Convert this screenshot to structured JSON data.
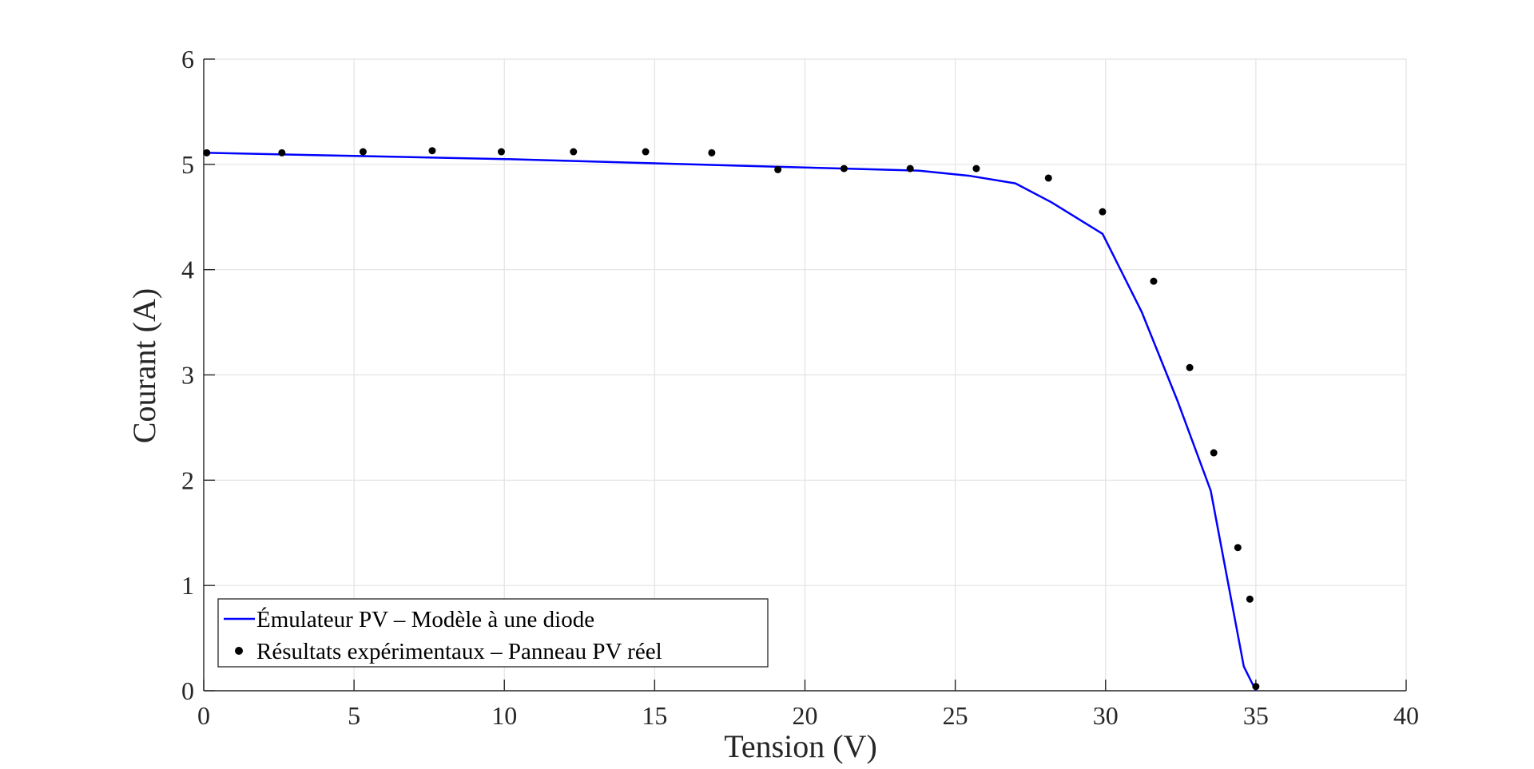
{
  "chart_data": {
    "type": "line",
    "xlabel": "Tension (V)",
    "ylabel": "Courant (A)",
    "xlim": [
      0,
      40
    ],
    "ylim": [
      0,
      6
    ],
    "xticks": [
      0,
      5,
      10,
      15,
      20,
      25,
      30,
      35,
      40
    ],
    "yticks": [
      0,
      1,
      2,
      3,
      4,
      5,
      6
    ],
    "grid": true,
    "legend_position": "bottom-left",
    "series": [
      {
        "name": "Émulateur PV – Modèle à une diode",
        "kind": "line",
        "color": "#0000ff",
        "x": [
          0,
          5,
          10,
          15,
          20,
          23.8,
          25.5,
          27.0,
          28.2,
          29.9,
          31.2,
          32.4,
          33.5,
          34.6,
          35.0
        ],
        "y": [
          5.11,
          5.08,
          5.05,
          5.01,
          4.97,
          4.94,
          4.89,
          4.82,
          4.64,
          4.34,
          3.6,
          2.75,
          1.9,
          0.23,
          0.0
        ]
      },
      {
        "name": "Résultats expérimentaux – Panneau PV réel",
        "kind": "scatter",
        "color": "#000000",
        "x": [
          0.1,
          2.6,
          5.3,
          7.6,
          9.9,
          12.3,
          14.7,
          16.9,
          19.1,
          21.3,
          23.5,
          25.7,
          28.1,
          29.9,
          31.6,
          32.8,
          33.6,
          34.4,
          34.8,
          35.0
        ],
        "y": [
          5.11,
          5.11,
          5.12,
          5.13,
          5.12,
          5.12,
          5.12,
          5.11,
          4.95,
          4.96,
          4.96,
          4.96,
          4.87,
          4.55,
          3.89,
          3.07,
          2.26,
          1.36,
          0.87,
          0.04
        ]
      }
    ]
  }
}
